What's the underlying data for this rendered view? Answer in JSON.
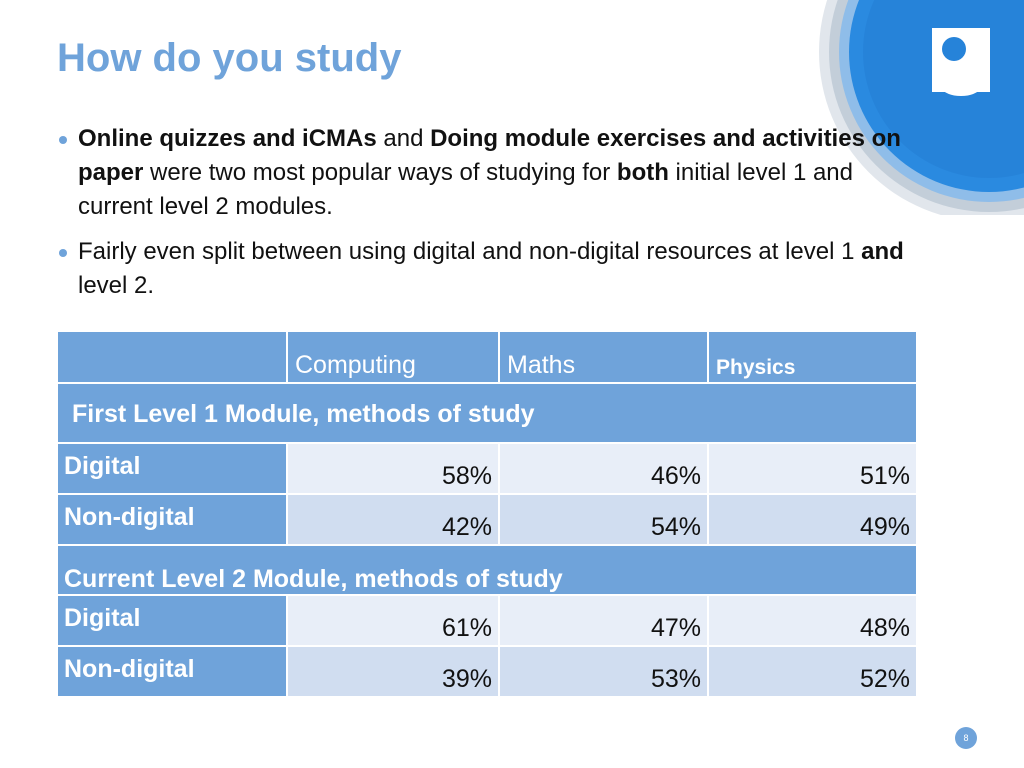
{
  "title": "How do you study",
  "bullets": [
    {
      "segments": [
        {
          "text": "Online quizzes and iCMAs",
          "bold": true
        },
        {
          "text": " and ",
          "bold": false
        },
        {
          "text": "Doing module exercises and activities on paper",
          "bold": true
        },
        {
          "text": " were two most popular ways of studying for ",
          "bold": false
        },
        {
          "text": "both",
          "bold": true
        },
        {
          "text": " initial level 1 and current level 2 modules.",
          "bold": false
        }
      ]
    },
    {
      "segments": [
        {
          "text": "Fairly even split between using digital and non-digital resources at level 1 ",
          "bold": false
        },
        {
          "text": "and",
          "bold": true
        },
        {
          "text": " level 2.",
          "bold": false
        }
      ]
    }
  ],
  "table": {
    "columns": [
      "Computing",
      "Maths",
      "Physics"
    ],
    "sections": [
      {
        "title": "First Level 1 Module, methods of study",
        "rows": [
          {
            "label": "Digital",
            "values": [
              "58%",
              "46%",
              "51%"
            ]
          },
          {
            "label": "Non-digital",
            "values": [
              "42%",
              "54%",
              "49%"
            ]
          }
        ]
      },
      {
        "title": "Current Level 2 Module, methods of study",
        "rows": [
          {
            "label": "Digital",
            "values": [
              "61%",
              "47%",
              "48%"
            ]
          },
          {
            "label": "Non-digital",
            "values": [
              "39%",
              "53%",
              "52%"
            ]
          }
        ]
      }
    ]
  },
  "page_number": "8",
  "colors": {
    "accent": "#6fa3da",
    "row_light": "#e8eef8",
    "row_dark": "#d0ddf0",
    "logo_blue": "#1f7fd6"
  },
  "logo": {
    "icon": "open-university-logo"
  }
}
